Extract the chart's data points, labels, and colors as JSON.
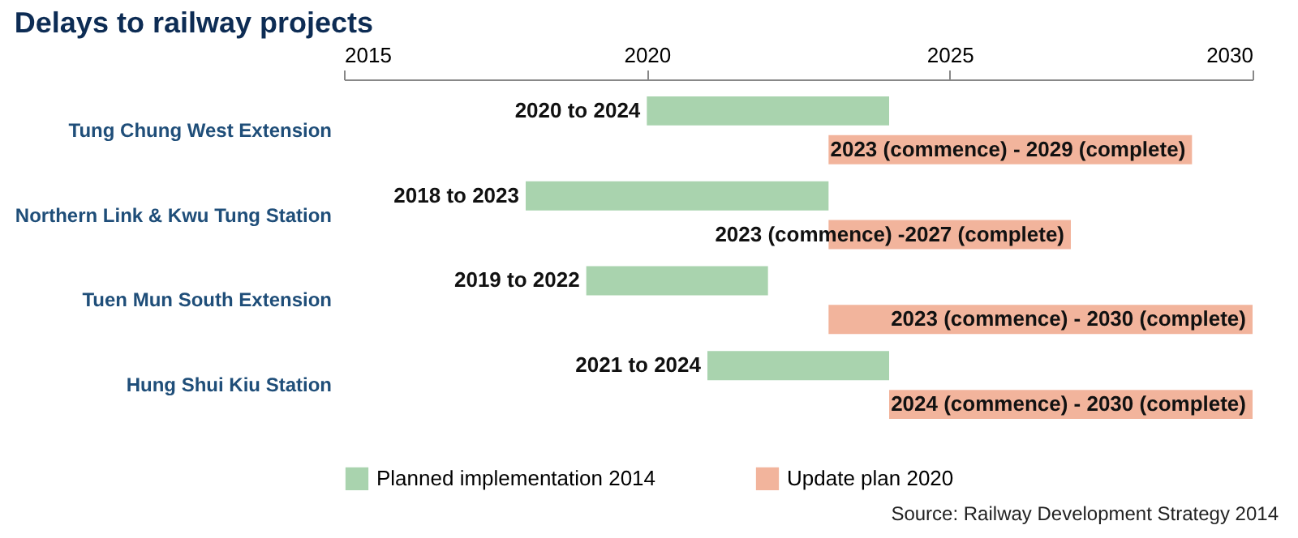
{
  "chart_data": {
    "type": "bar",
    "orientation": "horizontal",
    "title": "Delays to railway projects",
    "categories": [
      "Tung Chung West Extension",
      "Northern Link & Kwu Tung Station",
      "Tuen Mun South Extension",
      "Hung Shui Kiu Station"
    ],
    "series": [
      {
        "name": "Planned implementation 2014",
        "color": "#a9d3ae",
        "base": [
          2020,
          2018,
          2019,
          2021
        ],
        "values": [
          4,
          5,
          3,
          3
        ]
      },
      {
        "name": "Update plan 2020",
        "color": "#f2b49c",
        "base": [
          2023,
          2023,
          2023,
          2024
        ],
        "values": [
          6,
          4,
          7,
          6
        ]
      }
    ],
    "xlim": [
      2015,
      2030
    ],
    "xticks": [
      2015,
      2020,
      2025,
      2030
    ],
    "grid": false,
    "legend": "bottom",
    "annotations": [
      {
        "text": "2020 to 2024",
        "x": 2020,
        "y": "Tung Chung West Extension"
      },
      {
        "text": "2018 to 2023",
        "x": 2018,
        "y": "Northern Link & Kwu Tung Station"
      },
      {
        "text": "2019 to 2022",
        "x": 2019,
        "y": "Tuen Mun South Extension"
      },
      {
        "text": "2021 to 2024",
        "x": 2021,
        "y": "Hung Shui Kiu Station"
      },
      {
        "text": "2023 (commence) - 2029 (complete)",
        "x": 2029,
        "y": "Tung Chung West Extension"
      },
      {
        "text": "2023 (commence) -2027 (complete)",
        "x": 2027,
        "y": "Northern Link & Kwu Tung Station"
      },
      {
        "text": "2023 (commence) - 2030 (complete)",
        "x": 2030,
        "y": "Tuen Mun South Extension"
      },
      {
        "text": "2024 (commence) - 2030 (complete)",
        "x": 2030,
        "y": "Hung Shui Kiu Station"
      },
      "Source: Railway Development Strategy 2014"
    ]
  }
}
